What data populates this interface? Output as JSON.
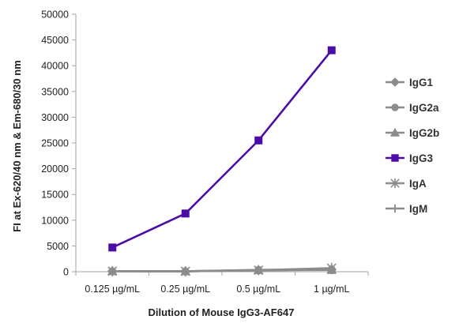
{
  "chart_data": {
    "type": "line",
    "xlabel": "Dilution of Mouse IgG3-AF647",
    "ylabel": "FI at Ex-620/40 nm & Em-680/30 nm",
    "categories": [
      "0.125 µg/mL",
      "0.25 µg/mL",
      "0.5 µg/mL",
      "1 µg/mL"
    ],
    "ylim": [
      0,
      50000
    ],
    "yticks": [
      0,
      5000,
      10000,
      15000,
      20000,
      25000,
      30000,
      35000,
      40000,
      45000,
      50000
    ],
    "grid": false,
    "legend_position": "right",
    "series": [
      {
        "name": "IgG1",
        "marker": "diamond",
        "color": "#8c8c8c",
        "values": [
          100,
          80,
          300,
          400
        ]
      },
      {
        "name": "IgG2a",
        "marker": "circle",
        "color": "#8c8c8c",
        "values": [
          100,
          80,
          350,
          450
        ]
      },
      {
        "name": "IgG2b",
        "marker": "triangle",
        "color": "#8c8c8c",
        "values": [
          100,
          80,
          300,
          350
        ]
      },
      {
        "name": "IgG3",
        "marker": "square",
        "color": "#4b0da6",
        "values": [
          4700,
          11300,
          25500,
          43000
        ]
      },
      {
        "name": "IgA",
        "marker": "star",
        "color": "#8c8c8c",
        "values": [
          100,
          80,
          300,
          700
        ]
      },
      {
        "name": "IgM",
        "marker": "plus",
        "color": "#8c8c8c",
        "values": [
          100,
          80,
          250,
          500
        ]
      }
    ]
  }
}
